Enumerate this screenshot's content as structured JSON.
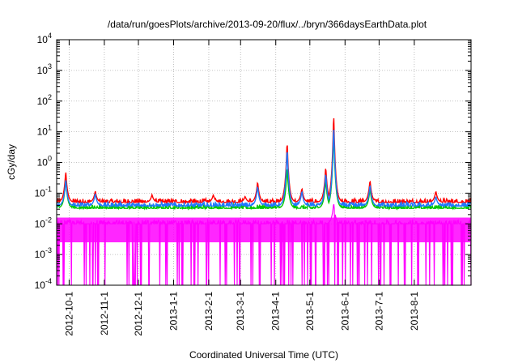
{
  "chart_data": {
    "type": "line",
    "title": "/data/run/goesPlots/archive/2013-09-20/flux/../bryn/366daysEarthData.plot",
    "xlabel": "Coordinated Universal Time (UTC)",
    "ylabel": "cGy/day",
    "yscale": "log",
    "ylim": [
      0.0001,
      10000
    ],
    "xlim": [
      "2012-09-20",
      "2013-09-20"
    ],
    "x_ticks": [
      "2012-10-1",
      "2012-11-1",
      "2012-12-1",
      "2013-1-1",
      "2013-2-1",
      "2013-3-1",
      "2013-4-1",
      "2013-5-1",
      "2013-6-1",
      "2013-7-1",
      "2013-8-1"
    ],
    "y_ticks": [
      {
        "base": "10",
        "exp": "-4"
      },
      {
        "base": "10",
        "exp": "-3"
      },
      {
        "base": "10",
        "exp": "-2"
      },
      {
        "base": "10",
        "exp": "-1"
      },
      {
        "base": "10",
        "exp": "0"
      },
      {
        "base": "10",
        "exp": "1"
      },
      {
        "base": "10",
        "exp": "2"
      },
      {
        "base": "10",
        "exp": "3"
      },
      {
        "base": "10",
        "exp": "4"
      }
    ],
    "grid": true,
    "legend": "none",
    "series": [
      {
        "color": "#ff0000",
        "baseline": 0.05,
        "peaks": [
          [
            "2012-09-28",
            0.55
          ],
          [
            "2012-10-24",
            0.12
          ],
          [
            "2012-12-13",
            0.09
          ],
          [
            "2013-02-05",
            0.09
          ],
          [
            "2013-03-05",
            0.08
          ],
          [
            "2013-03-16",
            0.25
          ],
          [
            "2013-04-11",
            6.0
          ],
          [
            "2013-04-24",
            0.15
          ],
          [
            "2013-05-15",
            0.8
          ],
          [
            "2013-05-22",
            50.0
          ],
          [
            "2013-06-23",
            0.28
          ],
          [
            "2013-08-20",
            0.12
          ]
        ]
      },
      {
        "color": "#00c800",
        "baseline": 0.032,
        "peaks": [
          [
            "2012-09-28",
            0.3
          ],
          [
            "2013-04-11",
            0.8
          ],
          [
            "2013-05-15",
            0.3
          ],
          [
            "2013-05-22",
            12.0
          ],
          [
            "2013-06-23",
            0.15
          ]
        ]
      },
      {
        "color": "#1e78ff",
        "baseline": 0.038,
        "peaks": [
          [
            "2012-09-28",
            0.3
          ],
          [
            "2012-10-24",
            0.1
          ],
          [
            "2013-03-16",
            0.18
          ],
          [
            "2013-04-11",
            3.5
          ],
          [
            "2013-04-24",
            0.12
          ],
          [
            "2013-05-15",
            0.5
          ],
          [
            "2013-05-22",
            20.0
          ],
          [
            "2013-06-23",
            0.2
          ],
          [
            "2013-08-20",
            0.08
          ]
        ]
      },
      {
        "color": "#ff00ff",
        "baseline": 0.01,
        "floor": 0.0025,
        "peaks": [
          [
            "2013-05-22",
            0.05
          ]
        ]
      }
    ]
  }
}
